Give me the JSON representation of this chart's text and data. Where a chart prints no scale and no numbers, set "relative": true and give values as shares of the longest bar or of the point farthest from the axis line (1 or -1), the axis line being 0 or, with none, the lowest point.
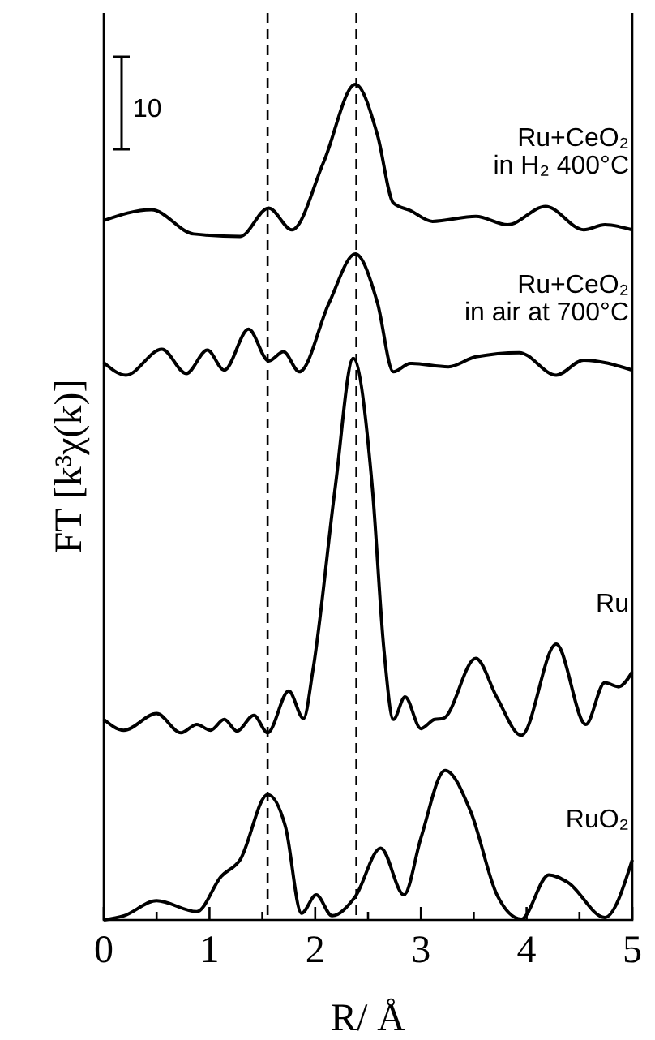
{
  "chart_data": {
    "type": "line",
    "relative": true,
    "xlabel": "R/ Å",
    "ylabel": "FT [k³χ(k)]",
    "xlim": [
      0,
      5
    ],
    "xticks": [
      0,
      {
        "value": 0.5,
        "label": null
      },
      1,
      {
        "value": 1.5,
        "label": null
      },
      2,
      {
        "value": 2.5,
        "label": null
      },
      3,
      {
        "value": 3.5,
        "label": null
      },
      4,
      {
        "value": 4.5,
        "label": null
      },
      5
    ],
    "legend": false,
    "marker": "none",
    "line_style": "solid",
    "annotations": [
      "10"
    ],
    "ref_lines": [
      {
        "axis": "x",
        "value": 1.55,
        "label": null,
        "color": "#000000",
        "line_style": "dashed"
      },
      {
        "axis": "x",
        "value": 2.39,
        "label": null,
        "color": "#000000",
        "line_style": "dashed"
      }
    ],
    "series": [
      {
        "name": "Ru+CeO₂\nin H₂ 400°C",
        "color": "#000000",
        "x": [
          0,
          0.45,
          0.85,
          1.29,
          1.56,
          1.78,
          2.08,
          2.38,
          2.59,
          2.74,
          2.9,
          3.11,
          3.52,
          3.82,
          4.18,
          4.54,
          4.74,
          5
        ],
        "values": [
          0.837,
          0.85,
          0.821,
          0.818,
          0.852,
          0.826,
          0.907,
          1,
          0.939,
          0.858,
          0.849,
          0.836,
          0.842,
          0.832,
          0.854,
          0.826,
          0.832,
          0.826
        ]
      },
      {
        "name": "Ru+CeO₂\nin air at 700°C",
        "color": "#000000",
        "x": [
          0,
          0.21,
          0.55,
          0.78,
          0.98,
          1.14,
          1.37,
          1.56,
          1.7,
          1.85,
          2.13,
          2.38,
          2.59,
          2.74,
          2.9,
          3.26,
          3.52,
          3.93,
          4.28,
          4.54,
          5
        ],
        "values": [
          0.667,
          0.652,
          0.683,
          0.654,
          0.682,
          0.658,
          0.707,
          0.669,
          0.68,
          0.656,
          0.738,
          0.797,
          0.738,
          0.656,
          0.666,
          0.662,
          0.674,
          0.679,
          0.652,
          0.67,
          0.658
        ]
      },
      {
        "name": "Ru",
        "color": "#000000",
        "x": [
          0,
          0.19,
          0.5,
          0.73,
          0.88,
          1.01,
          1.14,
          1.26,
          1.42,
          1.55,
          1.75,
          1.89,
          1.98,
          2.19,
          2.36,
          2.54,
          2.65,
          2.74,
          2.85,
          3.0,
          3.13,
          3.21,
          3.52,
          3.72,
          3.95,
          4.28,
          4.56,
          4.74,
          4.87,
          5
        ],
        "values": [
          0.24,
          0.227,
          0.247,
          0.224,
          0.234,
          0.227,
          0.24,
          0.226,
          0.245,
          0.224,
          0.274,
          0.241,
          0.3,
          0.518,
          0.672,
          0.518,
          0.324,
          0.24,
          0.267,
          0.229,
          0.24,
          0.241,
          0.313,
          0.266,
          0.221,
          0.33,
          0.234,
          0.284,
          0.279,
          0.297
        ]
      },
      {
        "name": "RuO₂",
        "color": "#000000",
        "x": [
          0,
          0.19,
          0.5,
          0.88,
          1.11,
          1.29,
          1.55,
          1.72,
          1.87,
          2.01,
          2.16,
          2.38,
          2.62,
          2.84,
          3.0,
          3.23,
          3.47,
          3.72,
          3.95,
          4.21,
          4.39,
          4.74,
          5
        ],
        "values": [
          0,
          0.005,
          0.023,
          0.01,
          0.052,
          0.072,
          0.15,
          0.111,
          0.008,
          0.03,
          0.005,
          0.028,
          0.086,
          0.03,
          0.098,
          0.179,
          0.13,
          0.03,
          0.001,
          0.054,
          0.045,
          0.003,
          0.072
        ]
      }
    ]
  }
}
